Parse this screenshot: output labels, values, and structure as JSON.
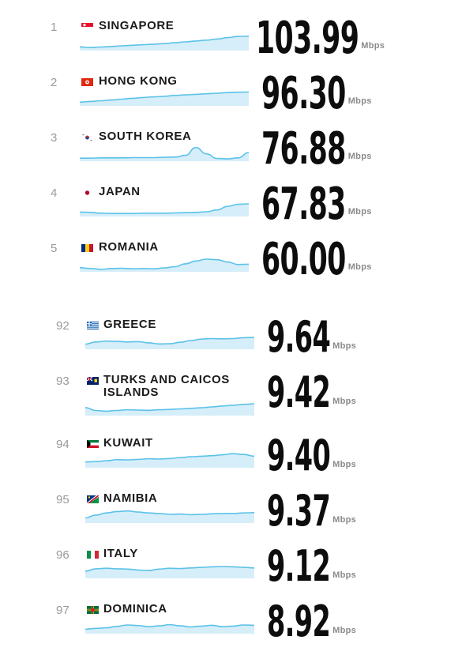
{
  "unit_label": "Mbps",
  "chart_data": {
    "type": "table",
    "columns": [
      "rank",
      "country",
      "speed_mbps"
    ],
    "rows": [
      {
        "rank": "1",
        "country": "SINGAPORE",
        "speed": "103.99",
        "flag": "singapore-flag-icon"
      },
      {
        "rank": "2",
        "country": "HONG KONG",
        "speed": "96.30",
        "flag": "hong-kong-flag-icon"
      },
      {
        "rank": "3",
        "country": "SOUTH KOREA",
        "speed": "76.88",
        "flag": "south-korea-flag-icon"
      },
      {
        "rank": "4",
        "country": "JAPAN",
        "speed": "67.83",
        "flag": "japan-flag-icon"
      },
      {
        "rank": "5",
        "country": "ROMANIA",
        "speed": "60.00",
        "flag": "romania-flag-icon"
      },
      {
        "rank": "92",
        "country": "GREECE",
        "speed": "9.64",
        "flag": "greece-flag-icon"
      },
      {
        "rank": "93",
        "country": "TURKS AND CAICOS ISLANDS",
        "speed": "9.42",
        "flag": "turks-and-caicos-flag-icon"
      },
      {
        "rank": "94",
        "country": "KUWAIT",
        "speed": "9.40",
        "flag": "kuwait-flag-icon"
      },
      {
        "rank": "95",
        "country": "NAMIBIA",
        "speed": "9.37",
        "flag": "namibia-flag-icon"
      },
      {
        "rank": "96",
        "country": "ITALY",
        "speed": "9.12",
        "flag": "italy-flag-icon"
      },
      {
        "rank": "97",
        "country": "DOMINICA",
        "speed": "8.92",
        "flag": "dominica-flag-icon"
      }
    ],
    "sparklines": [
      [
        0.15,
        0.1,
        0.14,
        0.18,
        0.22,
        0.26,
        0.3,
        0.34,
        0.38,
        0.44,
        0.5,
        0.56,
        0.62,
        0.7,
        0.8,
        0.88,
        0.9
      ],
      [
        0.15,
        0.2,
        0.25,
        0.3,
        0.36,
        0.42,
        0.48,
        0.52,
        0.56,
        0.62,
        0.66,
        0.7,
        0.74,
        0.78,
        0.82,
        0.85,
        0.86
      ],
      [
        0.1,
        0.1,
        0.12,
        0.12,
        0.12,
        0.14,
        0.14,
        0.14,
        0.16,
        0.18,
        0.3,
        0.85,
        0.4,
        0.08,
        0.05,
        0.12,
        0.5
      ],
      [
        0.2,
        0.18,
        0.12,
        0.1,
        0.1,
        0.1,
        0.12,
        0.12,
        0.12,
        0.14,
        0.16,
        0.18,
        0.22,
        0.35,
        0.6,
        0.75,
        0.78
      ],
      [
        0.18,
        0.12,
        0.06,
        0.12,
        0.14,
        0.1,
        0.12,
        0.1,
        0.16,
        0.25,
        0.45,
        0.65,
        0.78,
        0.74,
        0.58,
        0.4,
        0.42
      ],
      [
        0.25,
        0.4,
        0.46,
        0.44,
        0.4,
        0.42,
        0.34,
        0.26,
        0.28,
        0.38,
        0.5,
        0.6,
        0.64,
        0.62,
        0.64,
        0.7,
        0.72
      ],
      [
        0.45,
        0.25,
        0.2,
        0.25,
        0.3,
        0.28,
        0.26,
        0.3,
        0.32,
        0.36,
        0.4,
        0.44,
        0.5,
        0.56,
        0.62,
        0.68,
        0.72
      ],
      [
        0.3,
        0.32,
        0.38,
        0.46,
        0.44,
        0.48,
        0.52,
        0.5,
        0.54,
        0.6,
        0.66,
        0.7,
        0.74,
        0.8,
        0.88,
        0.82,
        0.7
      ],
      [
        0.25,
        0.45,
        0.6,
        0.7,
        0.74,
        0.66,
        0.6,
        0.56,
        0.5,
        0.52,
        0.48,
        0.5,
        0.54,
        0.56,
        0.56,
        0.6,
        0.62
      ],
      [
        0.4,
        0.56,
        0.6,
        0.56,
        0.54,
        0.48,
        0.44,
        0.54,
        0.6,
        0.58,
        0.62,
        0.66,
        0.7,
        0.72,
        0.7,
        0.66,
        0.62
      ],
      [
        0.2,
        0.26,
        0.3,
        0.4,
        0.5,
        0.46,
        0.38,
        0.44,
        0.52,
        0.44,
        0.36,
        0.42,
        0.48,
        0.38,
        0.42,
        0.5,
        0.48
      ]
    ]
  }
}
